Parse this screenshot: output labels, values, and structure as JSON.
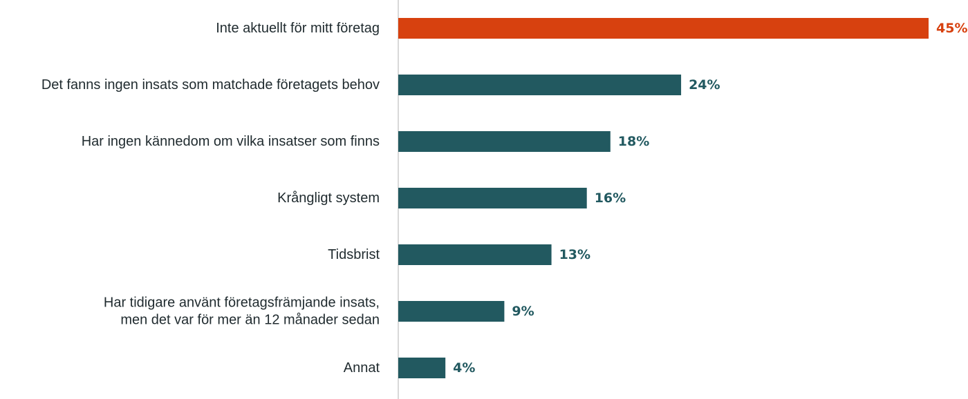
{
  "chart_data": {
    "type": "bar",
    "orientation": "horizontal",
    "categories": [
      [
        "Inte aktuellt för mitt företag"
      ],
      [
        "Det fanns ingen insats som matchade företagets behov"
      ],
      [
        "Har ingen kännedom om vilka insatser som finns"
      ],
      [
        "Krångligt system"
      ],
      [
        "Tidsbrist"
      ],
      [
        "Har tidigare använt företagsfrämjande insats,",
        "men det var för mer än 12 månader sedan"
      ],
      [
        "Annat"
      ]
    ],
    "values": [
      45,
      24,
      18,
      16,
      13,
      9,
      4
    ],
    "value_labels": [
      "45%",
      "24%",
      "18%",
      "16%",
      "13%",
      "9%",
      "4%"
    ],
    "unit": "%",
    "xlim": [
      0,
      45
    ],
    "grid": false,
    "legend": "none",
    "colors": {
      "highlight": "#d7410f",
      "default": "#225960",
      "axis": "#cccccc"
    },
    "highlight_index": 0
  }
}
